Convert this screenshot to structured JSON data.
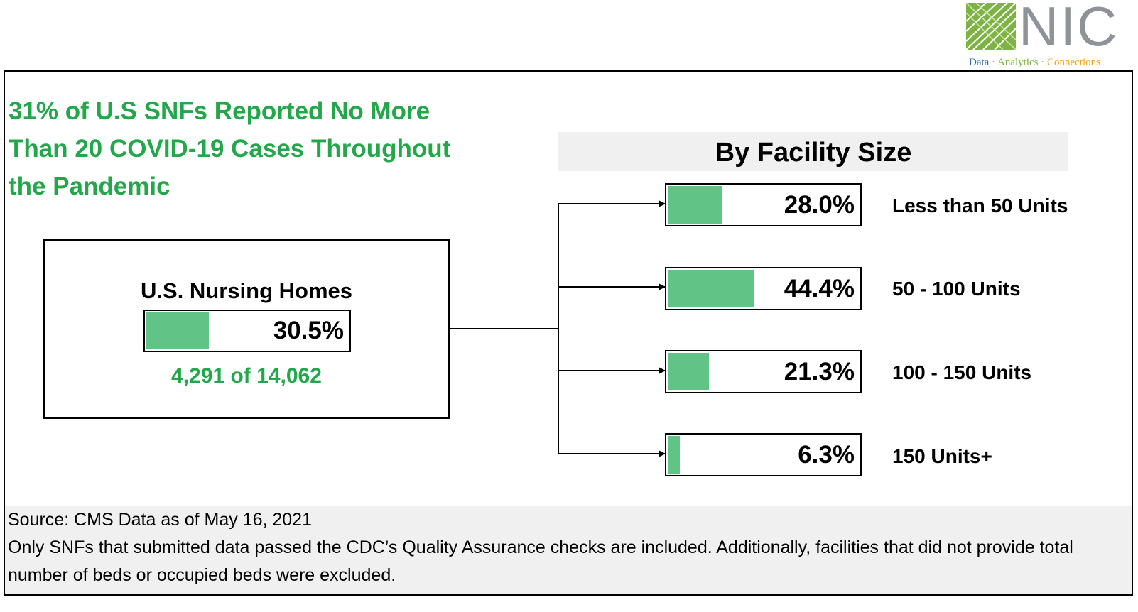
{
  "logo": {
    "wordmark": "NIC",
    "tagline_data": "Data",
    "tagline_sep": "·",
    "tagline_analytics": "Analytics",
    "tagline_connections": "Connections"
  },
  "headline": "31% of U.S SNFs Reported No More Than 20 COVID-19 Cases Throughout the Pandemic",
  "colors": {
    "accent": "#22a84a",
    "bar": "#62c386",
    "panel": "#f0f0f0"
  },
  "chart_data": {
    "type": "bar",
    "title": "By Facility Size",
    "overall": {
      "label": "U.S. Nursing Homes",
      "value": 30.5,
      "value_label": "30.5%",
      "count_label": "4,291 of 14,062"
    },
    "categories": [
      "Less than 50 Units",
      "50 - 100 Units",
      "100 - 150 Units",
      "150 Units+"
    ],
    "values": [
      28.0,
      44.4,
      21.3,
      6.3
    ],
    "value_labels": [
      "28.0%",
      "44.4%",
      "21.3%",
      "6.3%"
    ],
    "ylim": [
      0,
      100
    ]
  },
  "footer": {
    "source": "Source: CMS Data as of May 16, 2021",
    "note": "Only SNFs that submitted data passed the CDC’s Quality Assurance checks are included. Additionally, facilities that did not provide total number of beds or occupied beds were excluded."
  }
}
